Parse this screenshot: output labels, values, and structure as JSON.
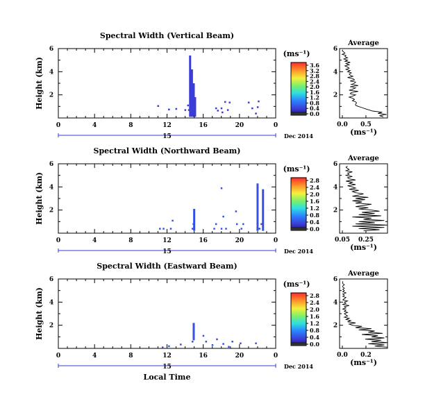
{
  "chart_data": [
    {
      "type": "heatmap",
      "title": "Spectral Width (Vertical Beam)",
      "ylabel": "Height (km)",
      "xlabel": "",
      "xlim": [
        0,
        24
      ],
      "xticks": [
        "0",
        "4",
        "8",
        "12",
        "16",
        "20",
        "0"
      ],
      "ylim": [
        0,
        6
      ],
      "yticks": [
        "2",
        "4",
        "6"
      ],
      "day_label": "15",
      "date_label": "Dec 2014",
      "unit_label": "(ms⁻¹)",
      "colorbar_ticks": [
        "0.0",
        "0.4",
        "0.8",
        "1.2",
        "1.6",
        "2.0",
        "2.4",
        "2.8",
        "3.2",
        "3.6"
      ],
      "colorbar_max": 4.0,
      "cells": [
        {
          "t": 11.0,
          "h": 1.05,
          "v": 0.5
        },
        {
          "t": 12.2,
          "h": 0.75,
          "v": 0.5
        },
        {
          "t": 13.0,
          "h": 0.8,
          "v": 0.5
        },
        {
          "t": 14.0,
          "h": 0.7,
          "v": 0.5
        },
        {
          "t": 14.3,
          "h": 1.1,
          "v": 0.5
        },
        {
          "t": 14.4,
          "h": 0.7,
          "v": 0.5
        },
        {
          "t": 17.4,
          "h": 0.85,
          "v": 0.5
        },
        {
          "t": 17.6,
          "h": 0.65,
          "v": 0.5
        },
        {
          "t": 18.0,
          "h": 0.85,
          "v": 0.5
        },
        {
          "t": 18.1,
          "h": 0.5,
          "v": 0.5
        },
        {
          "t": 18.7,
          "h": 0.7,
          "v": 0.5
        },
        {
          "t": 18.4,
          "h": 1.4,
          "v": 0.5
        },
        {
          "t": 18.9,
          "h": 1.35,
          "v": 0.5
        },
        {
          "t": 21.0,
          "h": 1.35,
          "v": 0.5
        },
        {
          "t": 21.4,
          "h": 0.85,
          "v": 0.5
        },
        {
          "t": 21.8,
          "h": 0.4,
          "v": 0.5
        },
        {
          "t": 22.0,
          "h": 0.95,
          "v": 0.5
        },
        {
          "t": 22.1,
          "h": 1.45,
          "v": 0.5
        }
      ],
      "columns": [
        {
          "t": 14.55,
          "h0": 0.1,
          "h1": 5.4,
          "v": 0.5
        },
        {
          "t": 14.75,
          "h0": 0.1,
          "h1": 4.2,
          "v": 0.5
        },
        {
          "t": 14.95,
          "h0": 0.1,
          "h1": 3.0,
          "v": 0.5
        },
        {
          "t": 15.1,
          "h0": 0.1,
          "h1": 1.8,
          "v": 0.5
        }
      ],
      "average": {
        "title": "Average",
        "xlabel": "(ms⁻¹)",
        "xlim": [
          0.0,
          0.9
        ],
        "xticks": [
          "0.0",
          "0.5"
        ],
        "yticks": [
          "2",
          "4",
          "6"
        ],
        "ylim": [
          0,
          6
        ],
        "heights": [
          0.1,
          0.2,
          0.3,
          0.4,
          0.5,
          0.6,
          0.7,
          0.8,
          0.9,
          1.0,
          1.1,
          1.2,
          1.3,
          1.4,
          1.5,
          1.6,
          1.7,
          1.8,
          1.9,
          2.0,
          2.1,
          2.2,
          2.3,
          2.4,
          2.5,
          2.6,
          2.7,
          2.8,
          2.9,
          3.0,
          3.1,
          3.2,
          3.3,
          3.4,
          3.5,
          3.6,
          3.7,
          3.8,
          3.9,
          4.0,
          4.1,
          4.2,
          4.3,
          4.4,
          4.5,
          4.6,
          4.7,
          4.8,
          4.9,
          5.0,
          5.1,
          5.2,
          5.3,
          5.4,
          5.5,
          5.6,
          5.7,
          5.8,
          5.9
        ],
        "values": [
          0.82,
          0.75,
          0.88,
          0.72,
          0.8,
          0.62,
          0.55,
          0.48,
          0.42,
          0.35,
          0.3,
          0.3,
          0.32,
          0.3,
          0.24,
          0.28,
          0.25,
          0.18,
          0.25,
          0.3,
          0.2,
          0.22,
          0.35,
          0.18,
          0.25,
          0.3,
          0.2,
          0.35,
          0.22,
          0.28,
          0.3,
          0.2,
          0.28,
          0.25,
          0.15,
          0.25,
          0.2,
          0.18,
          0.22,
          0.15,
          0.2,
          0.12,
          0.18,
          0.15,
          0.1,
          0.18,
          0.12,
          0.2,
          0.1,
          0.15,
          0.08,
          0.15,
          0.1,
          0.12,
          0.05,
          0.1,
          0.08,
          0.05,
          0.06
        ]
      }
    },
    {
      "type": "heatmap",
      "title": "Spectral Width (Northward Beam)",
      "ylabel": "Height (km)",
      "xlabel": "",
      "xlim": [
        0,
        24
      ],
      "xticks": [
        "0",
        "4",
        "8",
        "12",
        "16",
        "20",
        "0"
      ],
      "ylim": [
        0,
        6
      ],
      "yticks": [
        "2",
        "4",
        "6"
      ],
      "day_label": "15",
      "date_label": "Dec 2014",
      "unit_label": "(ms⁻¹)",
      "colorbar_ticks": [
        "0.0",
        "0.4",
        "0.8",
        "1.2",
        "1.6",
        "2.0",
        "2.4",
        "2.8"
      ],
      "colorbar_max": 3.0,
      "cells": [
        {
          "t": 11.2,
          "h": 0.4,
          "v": 0.5
        },
        {
          "t": 11.6,
          "h": 0.4,
          "v": 0.5
        },
        {
          "t": 12.4,
          "h": 0.4,
          "v": 0.5
        },
        {
          "t": 12.6,
          "h": 1.1,
          "v": 0.5
        },
        {
          "t": 14.8,
          "h": 0.4,
          "v": 0.5
        },
        {
          "t": 14.9,
          "h": 0.8,
          "v": 0.5
        },
        {
          "t": 17.2,
          "h": 0.4,
          "v": 0.5
        },
        {
          "t": 17.4,
          "h": 0.8,
          "v": 0.5
        },
        {
          "t": 18.0,
          "h": 0.4,
          "v": 0.5
        },
        {
          "t": 18.2,
          "h": 1.45,
          "v": 0.5
        },
        {
          "t": 18.5,
          "h": 0.4,
          "v": 0.5
        },
        {
          "t": 18.0,
          "h": 3.9,
          "v": 0.5
        },
        {
          "t": 19.6,
          "h": 1.9,
          "v": 0.5
        },
        {
          "t": 19.7,
          "h": 0.8,
          "v": 0.5
        },
        {
          "t": 20.2,
          "h": 0.4,
          "v": 0.5
        },
        {
          "t": 20.4,
          "h": 0.8,
          "v": 0.5
        },
        {
          "t": 22.2,
          "h": 0.4,
          "v": 0.5
        },
        {
          "t": 22.4,
          "h": 0.8,
          "v": 0.5
        }
      ],
      "columns": [
        {
          "t": 15.0,
          "h0": 0.2,
          "h1": 2.1,
          "v": 0.5
        },
        {
          "t": 22.0,
          "h0": 0.2,
          "h1": 4.3,
          "v": 0.5
        },
        {
          "t": 22.6,
          "h0": 0.2,
          "h1": 3.8,
          "v": 0.5
        }
      ],
      "average": {
        "title": "Average",
        "xlabel": "(ms⁻¹)",
        "xlim": [
          0.0,
          0.3
        ],
        "xticks": [
          "0.05",
          "0.25"
        ],
        "yticks": [
          "2",
          "4",
          "6"
        ],
        "ylim": [
          0,
          6
        ],
        "heights": [
          0.2,
          0.3,
          0.4,
          0.5,
          0.6,
          0.7,
          0.8,
          0.9,
          1.0,
          1.1,
          1.2,
          1.3,
          1.4,
          1.5,
          1.6,
          1.7,
          1.8,
          1.9,
          2.0,
          2.1,
          2.2,
          2.3,
          2.4,
          2.5,
          2.6,
          2.7,
          2.8,
          2.9,
          3.0,
          3.1,
          3.2,
          3.3,
          3.4,
          3.5,
          3.6,
          3.7,
          3.8,
          3.9,
          4.0,
          4.1,
          4.2,
          4.3,
          4.4,
          4.5,
          4.6,
          4.7,
          4.8,
          4.9,
          5.0,
          5.1,
          5.2,
          5.3,
          5.4,
          5.5,
          5.6,
          5.7,
          5.8
        ],
        "values": [
          0.15,
          0.25,
          0.12,
          0.28,
          0.08,
          0.3,
          0.1,
          0.22,
          0.12,
          0.28,
          0.15,
          0.2,
          0.08,
          0.26,
          0.12,
          0.22,
          0.14,
          0.25,
          0.2,
          0.12,
          0.18,
          0.1,
          0.15,
          0.2,
          0.1,
          0.14,
          0.08,
          0.16,
          0.1,
          0.18,
          0.08,
          0.12,
          0.15,
          0.1,
          0.08,
          0.12,
          0.06,
          0.1,
          0.08,
          0.05,
          0.1,
          0.06,
          0.08,
          0.04,
          0.1,
          0.06,
          0.05,
          0.08,
          0.04,
          0.06,
          0.05,
          0.08,
          0.04,
          0.06,
          0.05,
          0.04,
          0.05
        ]
      }
    },
    {
      "type": "heatmap",
      "title": "Spectral Width (Eastward Beam)",
      "ylabel": "Height (km)",
      "xlabel": "Local Time",
      "xlim": [
        0,
        24
      ],
      "xticks": [
        "0",
        "4",
        "8",
        "12",
        "16",
        "20",
        "0"
      ],
      "ylim": [
        0,
        6
      ],
      "yticks": [
        "2",
        "4",
        "6"
      ],
      "day_label": "15",
      "date_label": "Dec 2014",
      "unit_label": "(ms⁻¹)",
      "colorbar_ticks": [
        "0.0",
        "0.4",
        "0.8",
        "1.2",
        "1.6",
        "2.0",
        "2.4",
        "2.8"
      ],
      "colorbar_max": 3.0,
      "cells": [
        {
          "t": 11.5,
          "h": 0.1,
          "v": 0.5
        },
        {
          "t": 12.2,
          "h": 0.2,
          "v": 0.5
        },
        {
          "t": 13.5,
          "h": 0.35,
          "v": 0.5
        },
        {
          "t": 14.8,
          "h": 0.6,
          "v": 0.5
        },
        {
          "t": 16.0,
          "h": 1.1,
          "v": 0.5
        },
        {
          "t": 16.3,
          "h": 0.6,
          "v": 0.5
        },
        {
          "t": 17.0,
          "h": 0.3,
          "v": 0.5
        },
        {
          "t": 17.5,
          "h": 0.8,
          "v": 0.5
        },
        {
          "t": 18.2,
          "h": 0.4,
          "v": 0.5
        },
        {
          "t": 18.8,
          "h": 0.15,
          "v": 0.5
        },
        {
          "t": 19.2,
          "h": 0.6,
          "v": 0.5
        },
        {
          "t": 20.1,
          "h": 0.45,
          "v": 0.5
        },
        {
          "t": 21.8,
          "h": 0.45,
          "v": 0.5
        }
      ],
      "columns": [
        {
          "t": 14.95,
          "h0": 0.7,
          "h1": 2.2,
          "v": 0.5
        }
      ],
      "average": {
        "title": "Average",
        "xlabel": "(ms⁻¹)",
        "xlim": [
          0.0,
          0.3
        ],
        "xticks": [
          "0.0",
          "0.2"
        ],
        "yticks": [
          "2",
          "4",
          "6"
        ],
        "ylim": [
          0,
          6
        ],
        "heights": [
          0.1,
          0.2,
          0.3,
          0.4,
          0.5,
          0.6,
          0.7,
          0.8,
          0.9,
          1.0,
          1.1,
          1.2,
          1.3,
          1.4,
          1.5,
          1.6,
          1.7,
          1.8,
          1.9,
          2.0,
          2.1,
          2.2,
          2.3,
          2.4,
          2.5,
          2.6,
          2.7,
          2.8,
          2.9,
          3.0,
          3.1,
          3.2,
          3.3,
          3.4,
          3.5,
          3.6,
          3.7,
          3.8,
          3.9,
          4.0,
          4.1,
          4.2,
          4.3,
          4.4,
          4.5,
          4.6,
          4.7,
          4.8,
          4.9,
          5.0,
          5.1,
          5.2,
          5.3,
          5.4,
          5.5,
          5.6,
          5.7,
          5.8
        ],
        "values": [
          0.3,
          0.22,
          0.28,
          0.18,
          0.3,
          0.2,
          0.26,
          0.16,
          0.28,
          0.2,
          0.24,
          0.14,
          0.27,
          0.18,
          0.22,
          0.12,
          0.2,
          0.1,
          0.14,
          0.08,
          0.06,
          0.1,
          0.05,
          0.07,
          0.04,
          0.06,
          0.03,
          0.05,
          0.04,
          0.03,
          0.05,
          0.03,
          0.04,
          0.02,
          0.04,
          0.03,
          0.06,
          0.02,
          0.04,
          0.03,
          0.05,
          0.02,
          0.03,
          0.04,
          0.02,
          0.03,
          0.02,
          0.04,
          0.02,
          0.03,
          0.02,
          0.03,
          0.02,
          0.02,
          0.03,
          0.02,
          0.02,
          0.02
        ]
      }
    }
  ]
}
